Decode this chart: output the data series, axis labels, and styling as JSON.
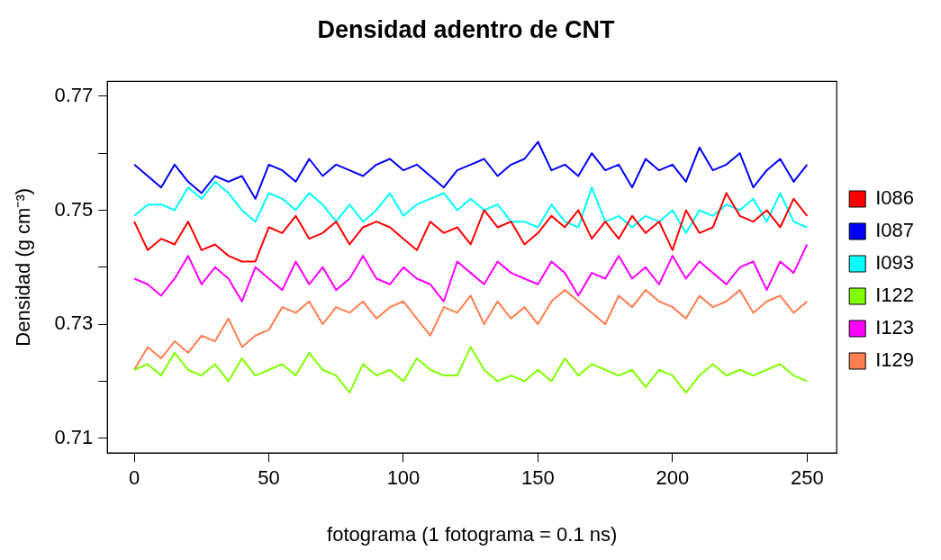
{
  "chart_data": {
    "type": "line",
    "title": "Densidad adentro de CNT",
    "xlabel": "fotograma (1 fotograma = 0.1 ns)",
    "ylabel": "Densidad (g cm⁻³)",
    "x": [
      0,
      5,
      10,
      15,
      20,
      25,
      30,
      35,
      40,
      45,
      50,
      55,
      60,
      65,
      70,
      75,
      80,
      85,
      90,
      95,
      100,
      105,
      110,
      115,
      120,
      125,
      130,
      135,
      140,
      145,
      150,
      155,
      160,
      165,
      170,
      175,
      180,
      185,
      190,
      195,
      200,
      205,
      210,
      215,
      220,
      225,
      230,
      235,
      240,
      245,
      250
    ],
    "xlim": [
      -10,
      261
    ],
    "xticks": [
      0,
      50,
      100,
      150,
      200,
      250
    ],
    "ylim": [
      0.7074,
      0.7726
    ],
    "yticks": [
      0.71,
      {
        "value": 0.72,
        "label": null
      },
      0.73,
      {
        "value": 0.74,
        "label": null
      },
      0.75,
      {
        "value": 0.76,
        "label": null
      },
      0.77
    ],
    "grid": false,
    "legend": "right",
    "marker": "none",
    "line_style": "solid",
    "series": [
      {
        "name": "I086",
        "color": "#ff0000",
        "values": [
          0.748,
          0.743,
          0.745,
          0.744,
          0.748,
          0.743,
          0.744,
          0.742,
          0.741,
          0.741,
          0.747,
          0.746,
          0.749,
          0.745,
          0.746,
          0.748,
          0.744,
          0.747,
          0.748,
          0.747,
          0.745,
          0.743,
          0.748,
          0.746,
          0.747,
          0.744,
          0.75,
          0.747,
          0.748,
          0.744,
          0.746,
          0.749,
          0.747,
          0.75,
          0.745,
          0.748,
          0.745,
          0.749,
          0.746,
          0.748,
          0.743,
          0.75,
          0.746,
          0.747,
          0.753,
          0.749,
          0.748,
          0.75,
          0.747,
          0.752,
          0.749
        ]
      },
      {
        "name": "I087",
        "color": "#0000ff",
        "values": [
          0.758,
          0.756,
          0.754,
          0.758,
          0.755,
          0.753,
          0.756,
          0.755,
          0.756,
          0.752,
          0.758,
          0.757,
          0.755,
          0.759,
          0.756,
          0.758,
          0.757,
          0.756,
          0.758,
          0.759,
          0.757,
          0.758,
          0.756,
          0.754,
          0.757,
          0.758,
          0.759,
          0.756,
          0.758,
          0.759,
          0.762,
          0.757,
          0.758,
          0.756,
          0.76,
          0.757,
          0.758,
          0.754,
          0.759,
          0.757,
          0.758,
          0.755,
          0.761,
          0.757,
          0.758,
          0.76,
          0.754,
          0.757,
          0.759,
          0.755,
          0.758
        ]
      },
      {
        "name": "I093",
        "color": "#00ffff",
        "values": [
          0.749,
          0.751,
          0.751,
          0.75,
          0.754,
          0.752,
          0.755,
          0.753,
          0.75,
          0.748,
          0.753,
          0.752,
          0.75,
          0.753,
          0.751,
          0.748,
          0.751,
          0.748,
          0.75,
          0.753,
          0.749,
          0.751,
          0.752,
          0.753,
          0.75,
          0.752,
          0.75,
          0.751,
          0.748,
          0.748,
          0.747,
          0.751,
          0.748,
          0.747,
          0.754,
          0.748,
          0.749,
          0.747,
          0.749,
          0.748,
          0.75,
          0.746,
          0.75,
          0.749,
          0.751,
          0.75,
          0.752,
          0.748,
          0.753,
          0.748,
          0.747
        ]
      },
      {
        "name": "I122",
        "color": "#7fff00",
        "values": [
          0.722,
          0.723,
          0.721,
          0.725,
          0.722,
          0.721,
          0.723,
          0.72,
          0.724,
          0.721,
          0.722,
          0.723,
          0.721,
          0.725,
          0.722,
          0.721,
          0.718,
          0.723,
          0.721,
          0.722,
          0.72,
          0.724,
          0.722,
          0.721,
          0.721,
          0.726,
          0.722,
          0.72,
          0.721,
          0.72,
          0.722,
          0.72,
          0.724,
          0.721,
          0.723,
          0.722,
          0.721,
          0.722,
          0.719,
          0.722,
          0.721,
          0.718,
          0.721,
          0.723,
          0.721,
          0.722,
          0.721,
          0.722,
          0.723,
          0.721,
          0.72
        ]
      },
      {
        "name": "I123",
        "color": "#ff00ff",
        "values": [
          0.738,
          0.737,
          0.735,
          0.738,
          0.742,
          0.737,
          0.74,
          0.738,
          0.734,
          0.74,
          0.738,
          0.736,
          0.741,
          0.737,
          0.74,
          0.736,
          0.738,
          0.742,
          0.738,
          0.737,
          0.74,
          0.738,
          0.737,
          0.734,
          0.741,
          0.739,
          0.737,
          0.741,
          0.739,
          0.738,
          0.737,
          0.741,
          0.739,
          0.735,
          0.739,
          0.738,
          0.742,
          0.738,
          0.74,
          0.737,
          0.742,
          0.738,
          0.741,
          0.739,
          0.737,
          0.74,
          0.741,
          0.736,
          0.741,
          0.739,
          0.744
        ]
      },
      {
        "name": "I129",
        "color": "#ff7f50",
        "values": [
          0.722,
          0.726,
          0.724,
          0.727,
          0.725,
          0.728,
          0.727,
          0.731,
          0.726,
          0.728,
          0.729,
          0.733,
          0.732,
          0.734,
          0.73,
          0.733,
          0.732,
          0.734,
          0.731,
          0.733,
          0.734,
          0.731,
          0.728,
          0.733,
          0.732,
          0.735,
          0.73,
          0.734,
          0.731,
          0.733,
          0.73,
          0.734,
          0.736,
          0.734,
          0.732,
          0.73,
          0.735,
          0.733,
          0.736,
          0.734,
          0.733,
          0.731,
          0.735,
          0.733,
          0.734,
          0.736,
          0.732,
          0.734,
          0.735,
          0.732,
          0.734
        ]
      }
    ]
  }
}
